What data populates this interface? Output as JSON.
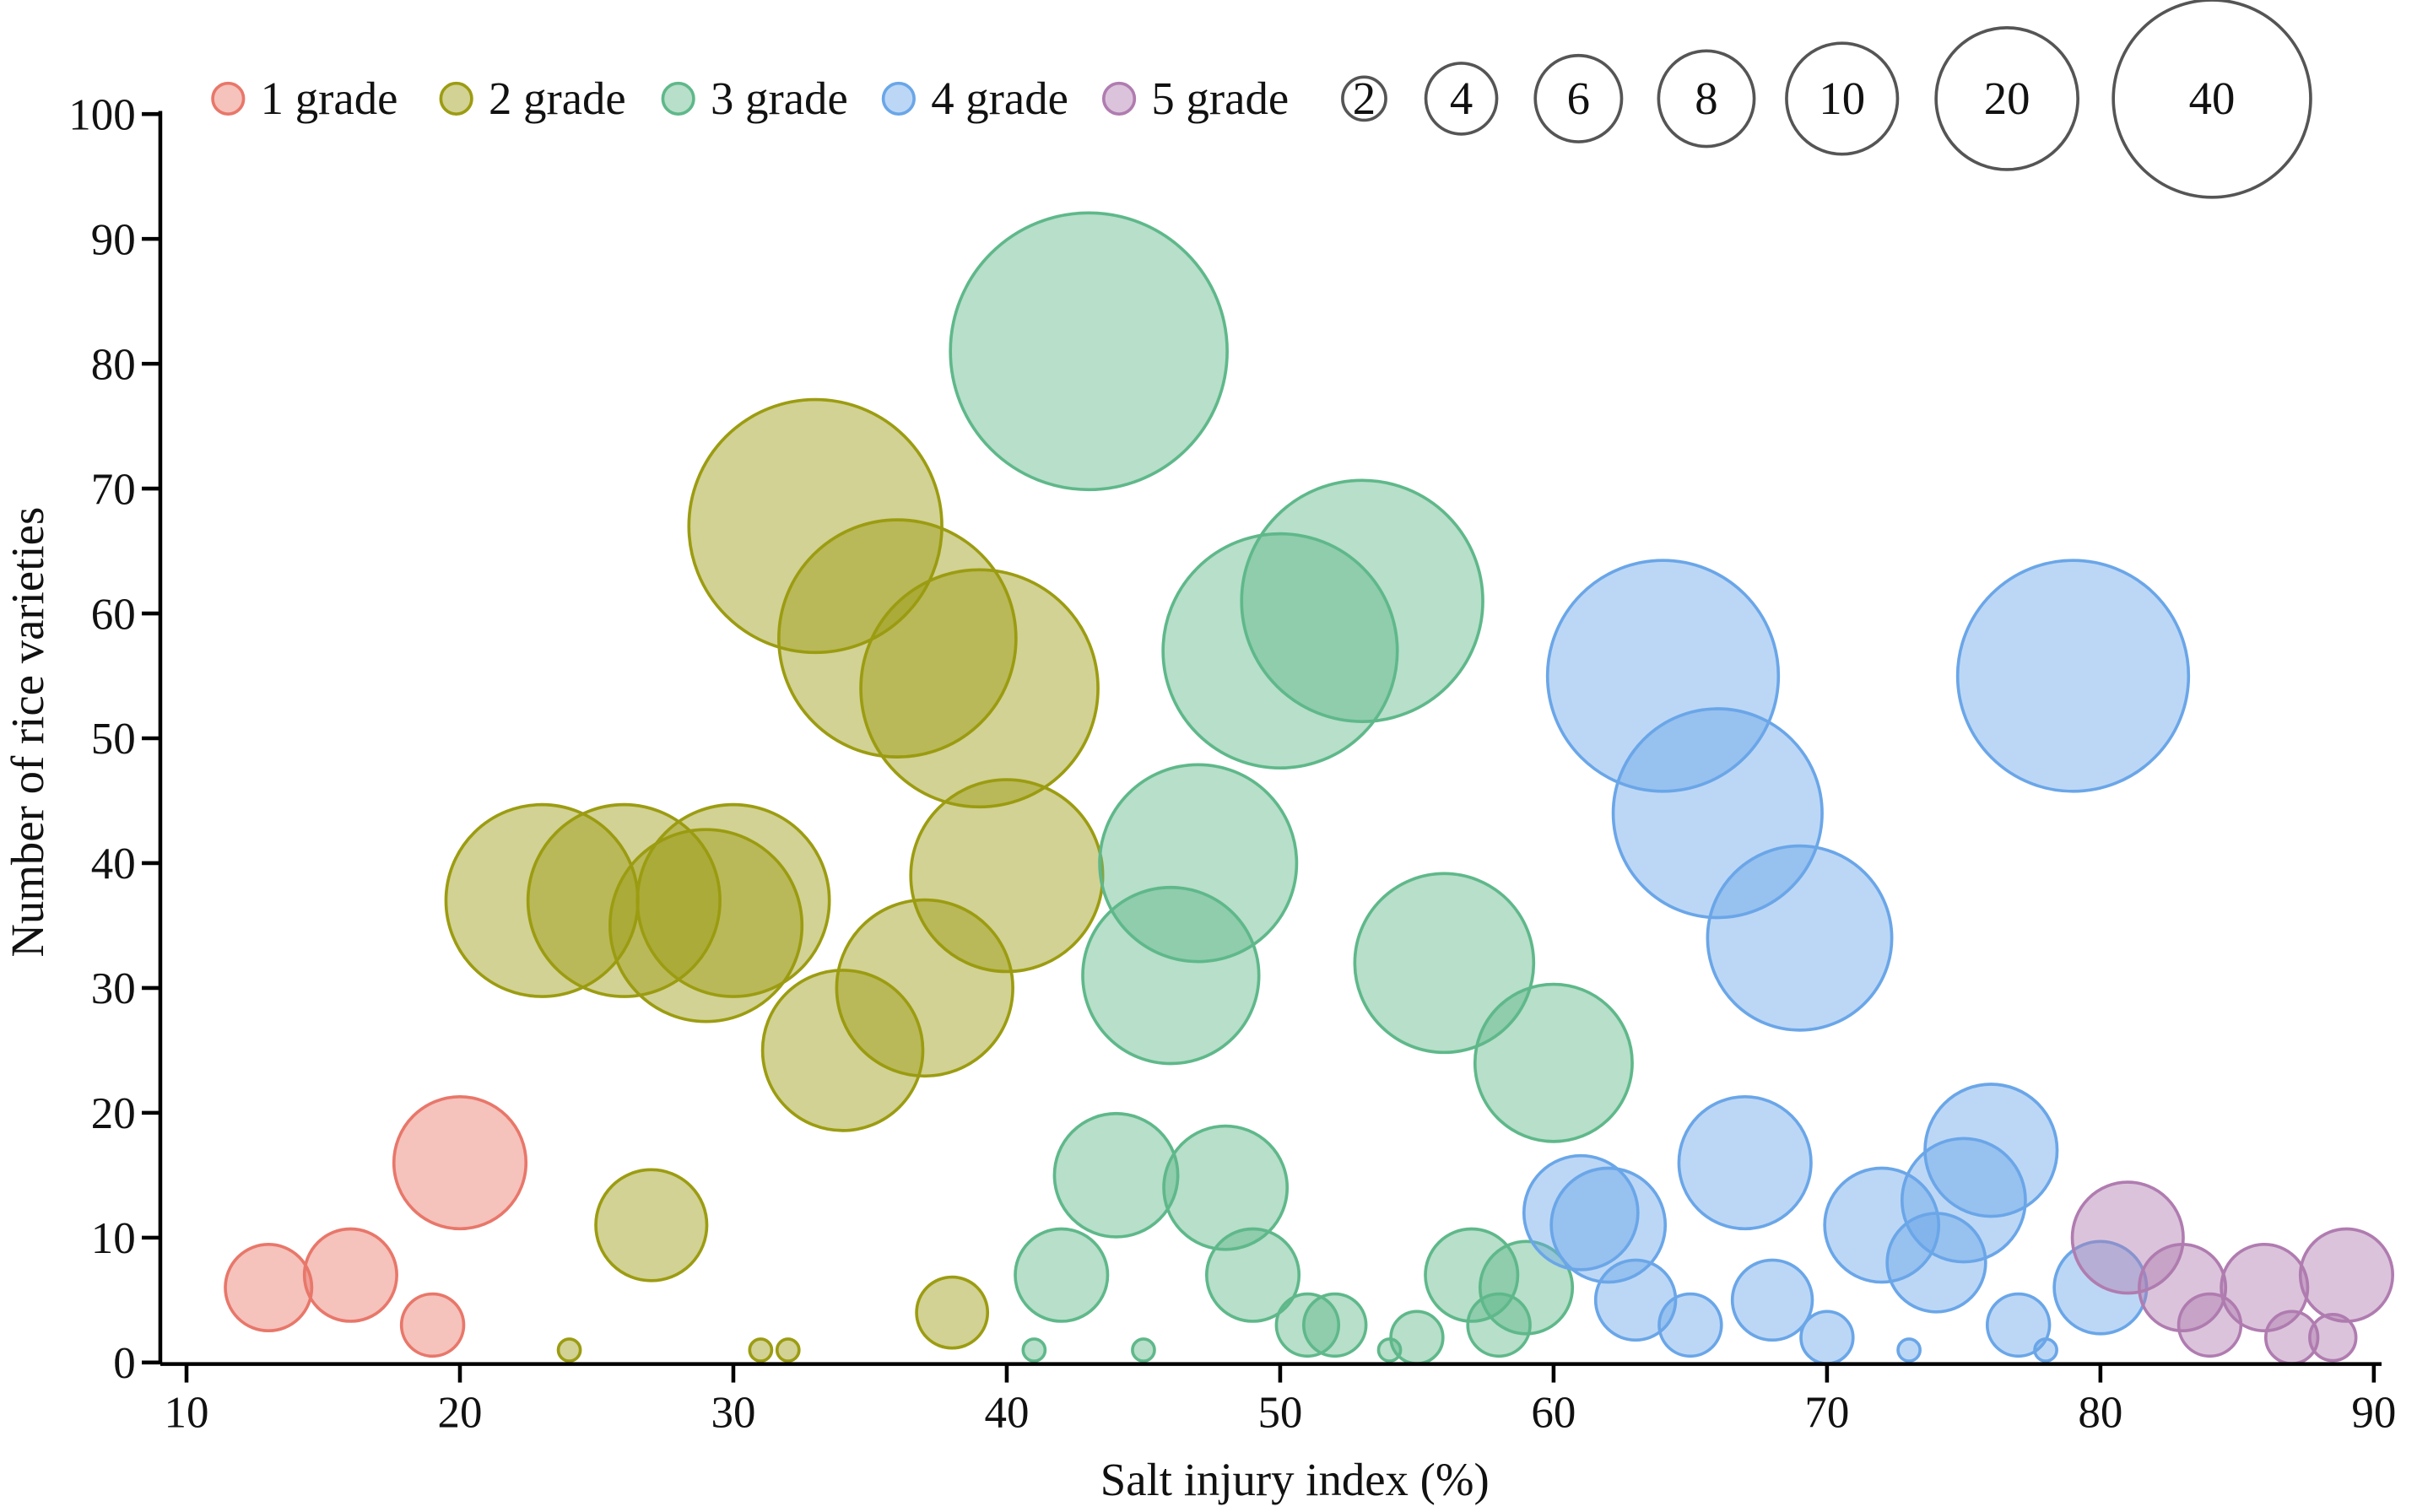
{
  "chart_data": {
    "type": "scatter",
    "subtype": "bubble",
    "title": "",
    "xlabel": "Salt injury index (%)",
    "ylabel": "Number of rice varieties",
    "xlim": [
      10,
      90
    ],
    "ylim": [
      0,
      100
    ],
    "xticks": [
      10,
      20,
      30,
      40,
      50,
      60,
      70,
      80,
      90
    ],
    "yticks": [
      0,
      10,
      20,
      30,
      40,
      50,
      60,
      70,
      80,
      90,
      100
    ],
    "grid": false,
    "legend_placement": "top",
    "size_legend": [
      2,
      4,
      6,
      8,
      10,
      20,
      40
    ],
    "series": [
      {
        "name": "1 grade",
        "color": "#e8776a",
        "points": [
          {
            "x": 13,
            "y": 6,
            "size": 7.7
          },
          {
            "x": 16,
            "y": 7,
            "size": 8.8
          },
          {
            "x": 19,
            "y": 3,
            "size": 4
          },
          {
            "x": 20,
            "y": 16,
            "size": 18
          }
        ]
      },
      {
        "name": "2 grade",
        "color": "#9c9c12",
        "points": [
          {
            "x": 33,
            "y": 67,
            "size": 66
          },
          {
            "x": 36,
            "y": 58,
            "size": 58
          },
          {
            "x": 39,
            "y": 54,
            "size": 58
          },
          {
            "x": 23,
            "y": 37,
            "size": 38
          },
          {
            "x": 26,
            "y": 37,
            "size": 38
          },
          {
            "x": 29,
            "y": 35,
            "size": 38
          },
          {
            "x": 30,
            "y": 37,
            "size": 38
          },
          {
            "x": 40,
            "y": 39,
            "size": 38
          },
          {
            "x": 37,
            "y": 30,
            "size": 32
          },
          {
            "x": 34,
            "y": 25,
            "size": 26.5
          },
          {
            "x": 27,
            "y": 11,
            "size": 12.7
          },
          {
            "x": 38,
            "y": 4,
            "size": 5.2
          },
          {
            "x": 24,
            "y": 1,
            "size": 0.5
          },
          {
            "x": 31,
            "y": 1,
            "size": 0.5
          },
          {
            "x": 32,
            "y": 1,
            "size": 0.5
          }
        ]
      },
      {
        "name": "3 grade",
        "color": "#5fb88a",
        "points": [
          {
            "x": 43,
            "y": 81,
            "size": 79
          },
          {
            "x": 50,
            "y": 57,
            "size": 56.6
          },
          {
            "x": 53,
            "y": 61,
            "size": 60
          },
          {
            "x": 47,
            "y": 40,
            "size": 40
          },
          {
            "x": 46,
            "y": 31,
            "size": 32
          },
          {
            "x": 56,
            "y": 32,
            "size": 33
          },
          {
            "x": 60,
            "y": 24,
            "size": 25.5
          },
          {
            "x": 44,
            "y": 15,
            "size": 15.7
          },
          {
            "x": 48,
            "y": 14,
            "size": 15.7
          },
          {
            "x": 42,
            "y": 7,
            "size": 8.8
          },
          {
            "x": 49,
            "y": 7,
            "size": 8.8
          },
          {
            "x": 57,
            "y": 7,
            "size": 8.8
          },
          {
            "x": 59,
            "y": 6,
            "size": 8.8
          },
          {
            "x": 51,
            "y": 3,
            "size": 4
          },
          {
            "x": 52,
            "y": 3,
            "size": 4
          },
          {
            "x": 58,
            "y": 3,
            "size": 4
          },
          {
            "x": 55,
            "y": 2,
            "size": 2.8
          },
          {
            "x": 41,
            "y": 1,
            "size": 0.5
          },
          {
            "x": 45,
            "y": 1,
            "size": 0.5
          },
          {
            "x": 54,
            "y": 1,
            "size": 0.5
          }
        ]
      },
      {
        "name": "4 grade",
        "color": "#6aa6e8",
        "points": [
          {
            "x": 64,
            "y": 55,
            "size": 55
          },
          {
            "x": 79,
            "y": 55,
            "size": 55
          },
          {
            "x": 66,
            "y": 44,
            "size": 45
          },
          {
            "x": 69,
            "y": 34,
            "size": 35
          },
          {
            "x": 67,
            "y": 16,
            "size": 18
          },
          {
            "x": 76,
            "y": 17,
            "size": 18
          },
          {
            "x": 75,
            "y": 13,
            "size": 15.7
          },
          {
            "x": 61,
            "y": 12,
            "size": 13.4
          },
          {
            "x": 62,
            "y": 11,
            "size": 13.4
          },
          {
            "x": 72,
            "y": 11,
            "size": 13.4
          },
          {
            "x": 74,
            "y": 8,
            "size": 10
          },
          {
            "x": 80,
            "y": 6,
            "size": 8.8
          },
          {
            "x": 63,
            "y": 5,
            "size": 6.6
          },
          {
            "x": 68,
            "y": 5,
            "size": 6.6
          },
          {
            "x": 65,
            "y": 3,
            "size": 4
          },
          {
            "x": 77,
            "y": 3,
            "size": 4
          },
          {
            "x": 70,
            "y": 2,
            "size": 2.8
          },
          {
            "x": 73,
            "y": 1,
            "size": 0.5
          },
          {
            "x": 78,
            "y": 1,
            "size": 0.5
          }
        ]
      },
      {
        "name": "5 grade",
        "color": "#b07cb0",
        "points": [
          {
            "x": 81,
            "y": 10,
            "size": 12.7
          },
          {
            "x": 83,
            "y": 6,
            "size": 7.7
          },
          {
            "x": 86,
            "y": 6,
            "size": 7.7
          },
          {
            "x": 89,
            "y": 7,
            "size": 8.8
          },
          {
            "x": 84,
            "y": 3,
            "size": 4
          },
          {
            "x": 87,
            "y": 2,
            "size": 2.8
          },
          {
            "x": 88.5,
            "y": 2,
            "size": 2.2
          }
        ]
      }
    ]
  }
}
